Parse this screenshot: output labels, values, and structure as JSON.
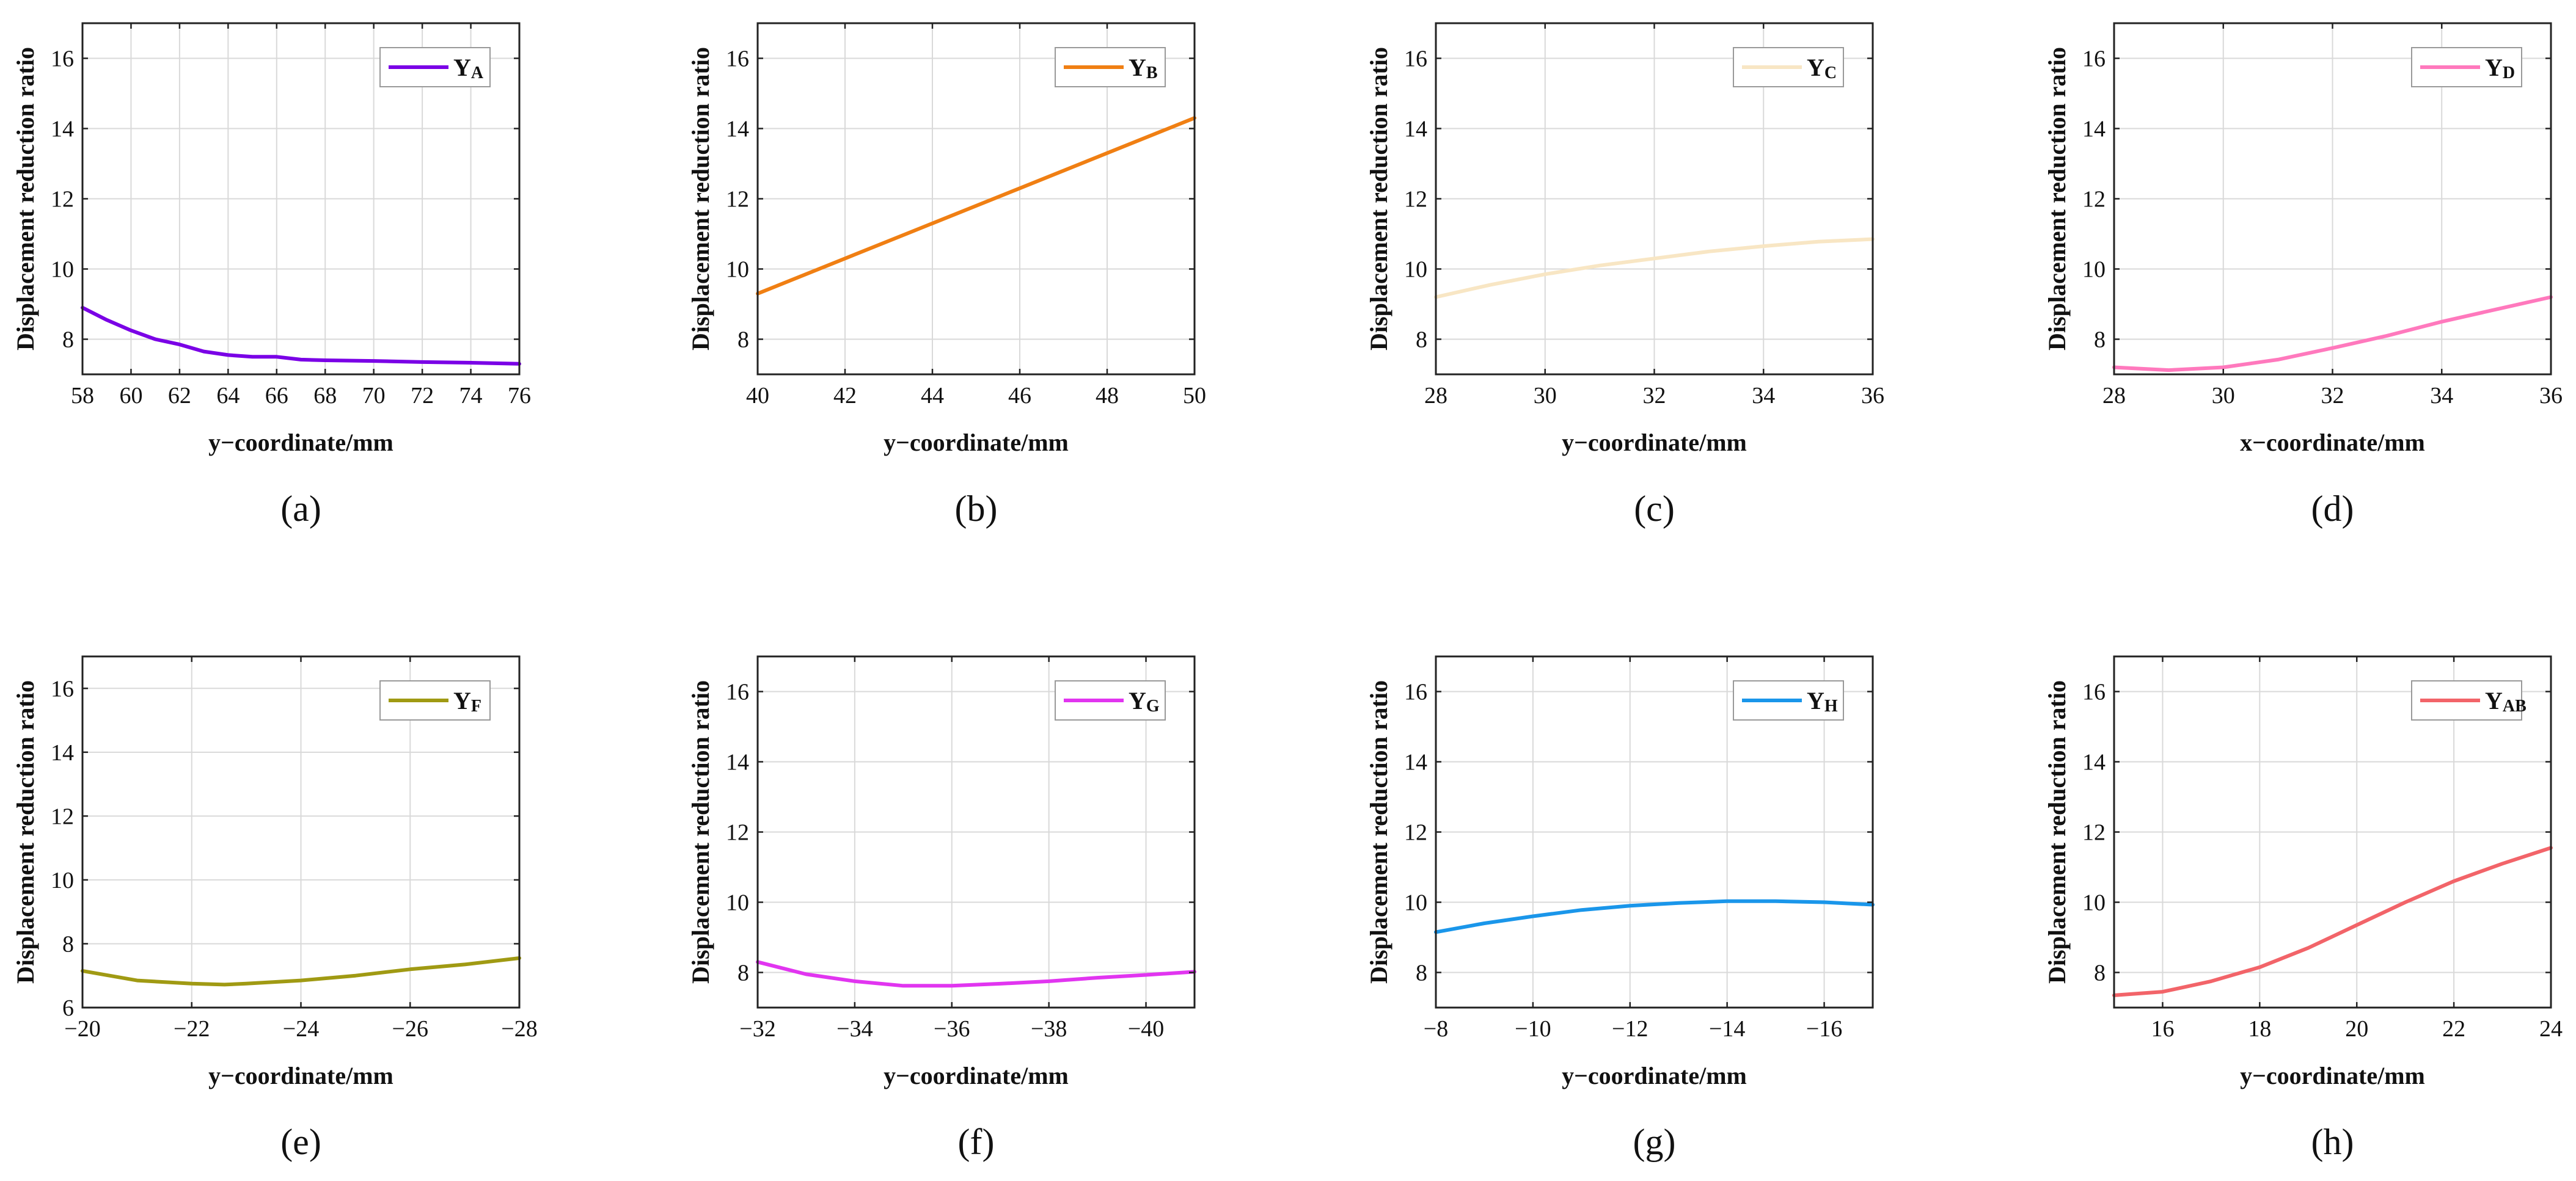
{
  "figure": {
    "panels_shown": 8
  },
  "chart_data": [
    {
      "id": "a",
      "type": "line",
      "caption": "(a)",
      "xlabel": "y−coordinate/mm",
      "ylabel": "Displacement reduction ratio",
      "xlim": [
        58,
        76
      ],
      "ylim": [
        7,
        17
      ],
      "grid": true,
      "xticks": [
        58,
        60,
        62,
        64,
        66,
        68,
        70,
        72,
        74,
        76
      ],
      "xtick_labels": [
        "58",
        "60",
        "62",
        "64",
        "66",
        "68",
        "70",
        "72",
        "74",
        "76"
      ],
      "yticks": [
        8,
        10,
        12,
        14,
        16
      ],
      "ytick_labels": [
        "8",
        "10",
        "12",
        "14",
        "16"
      ],
      "legend": {
        "position": "top-right",
        "label_main": "Y",
        "label_sub": "A"
      },
      "series": [
        {
          "name": "YA",
          "color": "#7a00e6",
          "x": [
            58,
            59,
            60,
            61,
            62,
            63,
            64,
            65,
            66,
            67,
            68,
            70,
            72,
            74,
            76
          ],
          "values": [
            8.9,
            8.55,
            8.25,
            8.0,
            7.85,
            7.65,
            7.55,
            7.5,
            7.5,
            7.42,
            7.4,
            7.38,
            7.35,
            7.33,
            7.3
          ]
        }
      ]
    },
    {
      "id": "b",
      "type": "line",
      "caption": "(b)",
      "xlabel": "y−coordinate/mm",
      "ylabel": "Displacement reduction ratio",
      "xlim": [
        40,
        50
      ],
      "ylim": [
        7,
        17
      ],
      "grid": true,
      "xticks": [
        40,
        42,
        44,
        46,
        48,
        50
      ],
      "xtick_labels": [
        "40",
        "42",
        "44",
        "46",
        "48",
        "50"
      ],
      "yticks": [
        8,
        10,
        12,
        14,
        16
      ],
      "ytick_labels": [
        "8",
        "10",
        "12",
        "14",
        "16"
      ],
      "legend": {
        "position": "top-right",
        "label_main": "Y",
        "label_sub": "B"
      },
      "series": [
        {
          "name": "YB",
          "color": "#f07f13",
          "x": [
            40,
            42,
            44,
            46,
            48,
            50
          ],
          "values": [
            9.3,
            10.3,
            11.3,
            12.3,
            13.3,
            14.3
          ]
        }
      ]
    },
    {
      "id": "c",
      "type": "line",
      "caption": "(c)",
      "xlabel": "y−coordinate/mm",
      "ylabel": "Displacement reduction ratio",
      "xlim": [
        28,
        36
      ],
      "ylim": [
        7,
        17
      ],
      "grid": true,
      "xticks": [
        28,
        30,
        32,
        34,
        36
      ],
      "xtick_labels": [
        "28",
        "30",
        "32",
        "34",
        "36"
      ],
      "yticks": [
        8,
        10,
        12,
        14,
        16
      ],
      "ytick_labels": [
        "8",
        "10",
        "12",
        "14",
        "16"
      ],
      "legend": {
        "position": "top-right",
        "label_main": "Y",
        "label_sub": "C"
      },
      "series": [
        {
          "name": "YC",
          "color": "#f8e6c4",
          "x": [
            28,
            29,
            30,
            31,
            32,
            33,
            34,
            35,
            36
          ],
          "values": [
            9.2,
            9.55,
            9.85,
            10.1,
            10.3,
            10.5,
            10.65,
            10.78,
            10.85
          ]
        }
      ]
    },
    {
      "id": "d",
      "type": "line",
      "caption": "(d)",
      "xlabel": "x−coordinate/mm",
      "ylabel": "Displacement reduction ratio",
      "xlim": [
        28,
        36
      ],
      "ylim": [
        7,
        17
      ],
      "grid": true,
      "xticks": [
        28,
        30,
        32,
        34,
        36
      ],
      "xtick_labels": [
        "28",
        "30",
        "32",
        "34",
        "36"
      ],
      "yticks": [
        8,
        10,
        12,
        14,
        16
      ],
      "ytick_labels": [
        "8",
        "10",
        "12",
        "14",
        "16"
      ],
      "legend": {
        "position": "top-right",
        "label_main": "Y",
        "label_sub": "D"
      },
      "series": [
        {
          "name": "YD",
          "color": "#ff79bd",
          "x": [
            28,
            29,
            30,
            31,
            32,
            33,
            34,
            35,
            36
          ],
          "values": [
            7.2,
            7.12,
            7.2,
            7.42,
            7.75,
            8.1,
            8.5,
            8.85,
            9.2
          ]
        }
      ]
    },
    {
      "id": "e",
      "type": "line",
      "caption": "(e)",
      "xlabel": "y−coordinate/mm",
      "ylabel": "Displacement reduction ratio",
      "xlim": [
        -20,
        -28
      ],
      "ylim": [
        6,
        17
      ],
      "grid": true,
      "xticks": [
        -20,
        -22,
        -24,
        -26,
        -28
      ],
      "xtick_labels": [
        "−20",
        "−22",
        "−24",
        "−26",
        "−28"
      ],
      "yticks": [
        6,
        8,
        10,
        12,
        14,
        16
      ],
      "ytick_labels": [
        "6",
        "8",
        "10",
        "12",
        "14",
        "16"
      ],
      "legend": {
        "position": "top-right",
        "label_main": "Y",
        "label_sub": "F"
      },
      "series": [
        {
          "name": "YF",
          "color": "#a09a13",
          "x": [
            -20,
            -21,
            -22,
            -22.6,
            -23,
            -24,
            -25,
            -26,
            -27,
            -28
          ],
          "values": [
            7.15,
            6.85,
            6.75,
            6.72,
            6.75,
            6.85,
            7.0,
            7.2,
            7.35,
            7.55
          ]
        }
      ]
    },
    {
      "id": "f",
      "type": "line",
      "caption": "(f)",
      "xlabel": "y−coordinate/mm",
      "ylabel": "Displacement reduction ratio",
      "xlim": [
        -32,
        -41
      ],
      "ylim": [
        7,
        17
      ],
      "grid": true,
      "xticks": [
        -32,
        -34,
        -36,
        -38,
        -40
      ],
      "xtick_labels": [
        "−32",
        "−34",
        "−36",
        "−38",
        "−40"
      ],
      "yticks": [
        8,
        10,
        12,
        14,
        16
      ],
      "ytick_labels": [
        "8",
        "10",
        "12",
        "14",
        "16"
      ],
      "legend": {
        "position": "top-right",
        "label_main": "Y",
        "label_sub": "G"
      },
      "series": [
        {
          "name": "YG",
          "color": "#e135f0",
          "x": [
            -32,
            -33,
            -34,
            -35,
            -36,
            -37,
            -38,
            -39,
            -40,
            -41
          ],
          "values": [
            8.3,
            7.95,
            7.75,
            7.62,
            7.62,
            7.68,
            7.75,
            7.85,
            7.93,
            8.02
          ]
        }
      ]
    },
    {
      "id": "g",
      "type": "line",
      "caption": "(g)",
      "xlabel": "y−coordinate/mm",
      "ylabel": "Displacement reduction ratio",
      "xlim": [
        -8,
        -17
      ],
      "ylim": [
        7,
        17
      ],
      "grid": true,
      "xticks": [
        -8,
        -10,
        -12,
        -14,
        -16
      ],
      "xtick_labels": [
        "−8",
        "−10",
        "−12",
        "−14",
        "−16"
      ],
      "yticks": [
        8,
        10,
        12,
        14,
        16
      ],
      "ytick_labels": [
        "8",
        "10",
        "12",
        "14",
        "16"
      ],
      "legend": {
        "position": "top-right",
        "label_main": "Y",
        "label_sub": "H"
      },
      "series": [
        {
          "name": "YH",
          "color": "#1a96ea",
          "x": [
            -8,
            -9,
            -10,
            -11,
            -12,
            -13,
            -14,
            -15,
            -16,
            -17
          ],
          "values": [
            9.15,
            9.4,
            9.6,
            9.78,
            9.9,
            9.98,
            10.03,
            10.03,
            10.0,
            9.93
          ]
        }
      ]
    },
    {
      "id": "h",
      "type": "line",
      "caption": "(h)",
      "xlabel": "y−coordinate/mm",
      "ylabel": "Displacement reduction ratio",
      "xlim": [
        15,
        24
      ],
      "ylim": [
        7,
        17
      ],
      "grid": true,
      "xticks": [
        16,
        18,
        20,
        22,
        24
      ],
      "xtick_labels": [
        "16",
        "18",
        "20",
        "22",
        "24"
      ],
      "yticks": [
        8,
        10,
        12,
        14,
        16
      ],
      "ytick_labels": [
        "8",
        "10",
        "12",
        "14",
        "16"
      ],
      "legend": {
        "position": "top-right",
        "label_main": "Y",
        "label_sub": "AB"
      },
      "series": [
        {
          "name": "YAB",
          "color": "#f26469",
          "x": [
            15,
            16,
            17,
            18,
            19,
            20,
            21,
            22,
            23,
            24
          ],
          "values": [
            7.35,
            7.45,
            7.75,
            8.15,
            8.7,
            9.35,
            10.0,
            10.6,
            11.1,
            11.55
          ]
        }
      ]
    }
  ]
}
